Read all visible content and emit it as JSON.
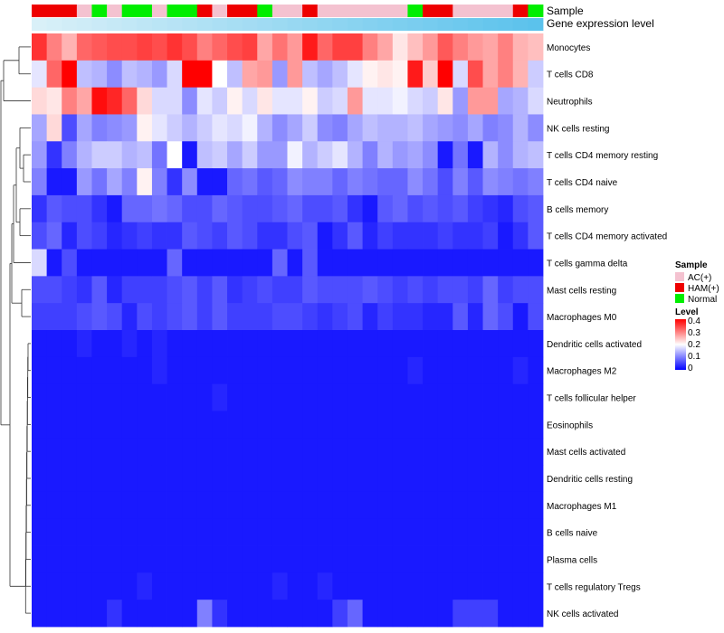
{
  "chart_data": {
    "type": "heatmap",
    "annotation_tracks": [
      "Sample",
      "Gene expression level"
    ],
    "samples_group": [
      "HAM(+)",
      "HAM(+)",
      "HAM(+)",
      "AC(+)",
      "Normal",
      "AC(+)",
      "Normal",
      "Normal",
      "AC(+)",
      "Normal",
      "Normal",
      "HAM(+)",
      "AC(+)",
      "HAM(+)",
      "HAM(+)",
      "Normal",
      "AC(+)",
      "AC(+)",
      "HAM(+)",
      "AC(+)",
      "AC(+)",
      "AC(+)",
      "AC(+)",
      "AC(+)",
      "AC(+)",
      "Normal",
      "HAM(+)",
      "HAM(+)",
      "AC(+)",
      "AC(+)",
      "AC(+)",
      "AC(+)",
      "HAM(+)",
      "Normal"
    ],
    "expression_gradient": [
      "#d9f0f8",
      "#5bc2ec"
    ],
    "rows": [
      "Monocytes",
      "T cells CD8",
      "Neutrophils",
      "NK cells resting",
      "T cells CD4 memory resting",
      "T cells CD4 naive",
      "B cells memory",
      "T cells CD4 memory activated",
      "T cells gamma delta",
      "Mast cells resting",
      "Macrophages M0",
      "Dendritic cells activated",
      "Macrophages M2",
      "T cells follicular helper",
      "Eosinophils",
      "Mast cells activated",
      "Dendritic cells resting",
      "Macrophages M1",
      "B cells naive",
      "Plasma cells",
      "T cells regulatory  Tregs",
      "NK cells activated"
    ],
    "values": [
      [
        0.36,
        0.3,
        0.26,
        0.32,
        0.33,
        0.34,
        0.34,
        0.35,
        0.34,
        0.36,
        0.34,
        0.3,
        0.32,
        0.34,
        0.35,
        0.27,
        0.31,
        0.28,
        0.38,
        0.32,
        0.35,
        0.35,
        0.3,
        0.27,
        0.22,
        0.25,
        0.28,
        0.33,
        0.3,
        0.28,
        0.27,
        0.3,
        0.26,
        0.25
      ],
      [
        0.18,
        0.32,
        0.4,
        0.15,
        0.14,
        0.11,
        0.15,
        0.14,
        0.12,
        0.17,
        0.4,
        0.4,
        0.2,
        0.15,
        0.27,
        0.28,
        0.12,
        0.28,
        0.15,
        0.13,
        0.15,
        0.18,
        0.21,
        0.22,
        0.21,
        0.38,
        0.24,
        0.4,
        0.17,
        0.34,
        0.27,
        0.3,
        0.26,
        0.16
      ],
      [
        0.23,
        0.22,
        0.3,
        0.27,
        0.39,
        0.37,
        0.32,
        0.23,
        0.17,
        0.17,
        0.11,
        0.18,
        0.16,
        0.21,
        0.17,
        0.22,
        0.18,
        0.18,
        0.21,
        0.16,
        0.17,
        0.28,
        0.18,
        0.18,
        0.19,
        0.17,
        0.16,
        0.22,
        0.12,
        0.28,
        0.28,
        0.13,
        0.14,
        0.17
      ],
      [
        0.13,
        0.23,
        0.06,
        0.13,
        0.1,
        0.11,
        0.12,
        0.21,
        0.18,
        0.16,
        0.14,
        0.16,
        0.18,
        0.17,
        0.19,
        0.14,
        0.11,
        0.13,
        0.16,
        0.11,
        0.1,
        0.13,
        0.15,
        0.14,
        0.14,
        0.15,
        0.13,
        0.12,
        0.11,
        0.13,
        0.1,
        0.11,
        0.14,
        0.11
      ],
      [
        0.12,
        0.04,
        0.1,
        0.14,
        0.16,
        0.16,
        0.14,
        0.15,
        0.09,
        0.2,
        0.02,
        0.15,
        0.16,
        0.13,
        0.16,
        0.12,
        0.12,
        0.19,
        0.14,
        0.16,
        0.18,
        0.14,
        0.1,
        0.14,
        0.12,
        0.13,
        0.11,
        0.02,
        0.09,
        0.02,
        0.14,
        0.11,
        0.14,
        0.15
      ],
      [
        0.1,
        0.02,
        0.02,
        0.12,
        0.09,
        0.13,
        0.1,
        0.21,
        0.1,
        0.04,
        0.11,
        0.02,
        0.02,
        0.08,
        0.09,
        0.07,
        0.08,
        0.11,
        0.1,
        0.1,
        0.08,
        0.1,
        0.09,
        0.08,
        0.08,
        0.11,
        0.09,
        0.06,
        0.1,
        0.07,
        0.11,
        0.1,
        0.09,
        0.1
      ],
      [
        0.04,
        0.07,
        0.06,
        0.06,
        0.04,
        0.02,
        0.08,
        0.08,
        0.09,
        0.08,
        0.06,
        0.06,
        0.08,
        0.07,
        0.06,
        0.06,
        0.07,
        0.08,
        0.06,
        0.06,
        0.07,
        0.04,
        0.02,
        0.07,
        0.08,
        0.06,
        0.07,
        0.06,
        0.07,
        0.05,
        0.04,
        0.03,
        0.06,
        0.07
      ],
      [
        0.06,
        0.08,
        0.03,
        0.06,
        0.05,
        0.03,
        0.04,
        0.05,
        0.04,
        0.04,
        0.07,
        0.06,
        0.05,
        0.07,
        0.06,
        0.04,
        0.04,
        0.06,
        0.07,
        0.02,
        0.04,
        0.07,
        0.03,
        0.05,
        0.04,
        0.04,
        0.04,
        0.05,
        0.04,
        0.04,
        0.05,
        0.02,
        0.04,
        0.07
      ],
      [
        0.17,
        0.02,
        0.06,
        0.02,
        0.02,
        0.02,
        0.02,
        0.02,
        0.02,
        0.08,
        0.02,
        0.02,
        0.02,
        0.02,
        0.02,
        0.02,
        0.08,
        0.02,
        0.07,
        0.02,
        0.02,
        0.02,
        0.02,
        0.02,
        0.02,
        0.02,
        0.02,
        0.02,
        0.02,
        0.02,
        0.02,
        0.02,
        0.02,
        0.02
      ],
      [
        0.06,
        0.06,
        0.05,
        0.04,
        0.07,
        0.03,
        0.05,
        0.05,
        0.05,
        0.06,
        0.07,
        0.05,
        0.07,
        0.04,
        0.05,
        0.06,
        0.05,
        0.05,
        0.07,
        0.06,
        0.06,
        0.06,
        0.07,
        0.06,
        0.05,
        0.06,
        0.05,
        0.06,
        0.06,
        0.05,
        0.08,
        0.05,
        0.06,
        0.06
      ],
      [
        0.05,
        0.05,
        0.05,
        0.06,
        0.07,
        0.06,
        0.03,
        0.06,
        0.05,
        0.06,
        0.07,
        0.05,
        0.07,
        0.05,
        0.05,
        0.05,
        0.06,
        0.06,
        0.05,
        0.04,
        0.05,
        0.06,
        0.03,
        0.05,
        0.04,
        0.04,
        0.03,
        0.03,
        0.07,
        0.03,
        0.08,
        0.06,
        0.02,
        0.06
      ],
      [
        0.02,
        0.02,
        0.02,
        0.03,
        0.02,
        0.02,
        0.03,
        0.02,
        0.03,
        0.02,
        0.02,
        0.02,
        0.02,
        0.02,
        0.02,
        0.02,
        0.02,
        0.02,
        0.02,
        0.02,
        0.02,
        0.02,
        0.02,
        0.02,
        0.02,
        0.02,
        0.02,
        0.02,
        0.02,
        0.02,
        0.02,
        0.02,
        0.02,
        0.02
      ],
      [
        0.02,
        0.02,
        0.02,
        0.02,
        0.02,
        0.02,
        0.02,
        0.02,
        0.03,
        0.02,
        0.02,
        0.02,
        0.02,
        0.02,
        0.02,
        0.02,
        0.02,
        0.02,
        0.02,
        0.02,
        0.02,
        0.02,
        0.02,
        0.02,
        0.02,
        0.03,
        0.02,
        0.02,
        0.02,
        0.02,
        0.02,
        0.02,
        0.03,
        0.02
      ],
      [
        0.02,
        0.02,
        0.02,
        0.02,
        0.02,
        0.02,
        0.02,
        0.02,
        0.02,
        0.02,
        0.02,
        0.02,
        0.03,
        0.02,
        0.02,
        0.02,
        0.02,
        0.02,
        0.02,
        0.02,
        0.02,
        0.02,
        0.02,
        0.02,
        0.02,
        0.02,
        0.02,
        0.02,
        0.02,
        0.02,
        0.02,
        0.02,
        0.02,
        0.02
      ],
      [
        0.02,
        0.02,
        0.02,
        0.02,
        0.02,
        0.02,
        0.02,
        0.02,
        0.02,
        0.02,
        0.02,
        0.02,
        0.02,
        0.02,
        0.02,
        0.02,
        0.02,
        0.02,
        0.02,
        0.02,
        0.02,
        0.02,
        0.02,
        0.02,
        0.02,
        0.02,
        0.02,
        0.02,
        0.02,
        0.02,
        0.02,
        0.02,
        0.02,
        0.02
      ],
      [
        0.02,
        0.02,
        0.02,
        0.02,
        0.02,
        0.02,
        0.02,
        0.02,
        0.02,
        0.02,
        0.02,
        0.02,
        0.02,
        0.02,
        0.02,
        0.02,
        0.02,
        0.02,
        0.02,
        0.02,
        0.02,
        0.02,
        0.02,
        0.02,
        0.02,
        0.02,
        0.02,
        0.02,
        0.02,
        0.02,
        0.02,
        0.02,
        0.02,
        0.02
      ],
      [
        0.02,
        0.02,
        0.02,
        0.02,
        0.02,
        0.02,
        0.02,
        0.02,
        0.02,
        0.02,
        0.02,
        0.02,
        0.02,
        0.02,
        0.02,
        0.02,
        0.02,
        0.02,
        0.02,
        0.02,
        0.02,
        0.02,
        0.02,
        0.02,
        0.02,
        0.02,
        0.02,
        0.02,
        0.02,
        0.02,
        0.02,
        0.02,
        0.02,
        0.02
      ],
      [
        0.02,
        0.02,
        0.02,
        0.02,
        0.02,
        0.02,
        0.02,
        0.02,
        0.02,
        0.02,
        0.02,
        0.02,
        0.02,
        0.02,
        0.02,
        0.02,
        0.02,
        0.02,
        0.02,
        0.02,
        0.02,
        0.02,
        0.02,
        0.02,
        0.02,
        0.02,
        0.02,
        0.02,
        0.02,
        0.02,
        0.02,
        0.02,
        0.02,
        0.02
      ],
      [
        0.02,
        0.02,
        0.02,
        0.02,
        0.02,
        0.02,
        0.02,
        0.02,
        0.02,
        0.02,
        0.02,
        0.02,
        0.02,
        0.02,
        0.02,
        0.02,
        0.02,
        0.02,
        0.02,
        0.02,
        0.02,
        0.02,
        0.02,
        0.02,
        0.02,
        0.02,
        0.02,
        0.02,
        0.02,
        0.02,
        0.02,
        0.02,
        0.02,
        0.02
      ],
      [
        0.02,
        0.02,
        0.02,
        0.02,
        0.02,
        0.02,
        0.02,
        0.02,
        0.02,
        0.02,
        0.02,
        0.02,
        0.02,
        0.02,
        0.02,
        0.02,
        0.02,
        0.02,
        0.02,
        0.02,
        0.02,
        0.02,
        0.02,
        0.02,
        0.02,
        0.02,
        0.02,
        0.02,
        0.02,
        0.02,
        0.02,
        0.02,
        0.02,
        0.02
      ],
      [
        0.02,
        0.02,
        0.02,
        0.02,
        0.02,
        0.02,
        0.02,
        0.03,
        0.02,
        0.02,
        0.02,
        0.02,
        0.02,
        0.02,
        0.02,
        0.02,
        0.03,
        0.02,
        0.02,
        0.03,
        0.02,
        0.02,
        0.02,
        0.02,
        0.02,
        0.02,
        0.02,
        0.02,
        0.02,
        0.02,
        0.02,
        0.02,
        0.02,
        0.02
      ],
      [
        0.02,
        0.02,
        0.02,
        0.02,
        0.02,
        0.04,
        0.02,
        0.02,
        0.02,
        0.02,
        0.02,
        0.1,
        0.04,
        0.02,
        0.02,
        0.02,
        0.02,
        0.02,
        0.02,
        0.02,
        0.05,
        0.08,
        0.02,
        0.02,
        0.02,
        0.02,
        0.02,
        0.02,
        0.05,
        0.05,
        0.05,
        0.02,
        0.02,
        0.02
      ]
    ],
    "legend": {
      "sample_title": "Sample",
      "sample_entries": [
        {
          "label": "AC(+)",
          "color": "#f4c2d0"
        },
        {
          "label": "HAM(+)",
          "color": "#ee0000"
        },
        {
          "label": "Normal",
          "color": "#00ee00"
        }
      ],
      "level_title": "Level",
      "level_ticks": [
        "0.4",
        "0.3",
        "0.2",
        "0.1",
        "0"
      ],
      "level_range": [
        0,
        0.4
      ]
    },
    "colors": {
      "low": "#0000ff",
      "mid": "#ffffff",
      "high": "#ff0000"
    }
  }
}
